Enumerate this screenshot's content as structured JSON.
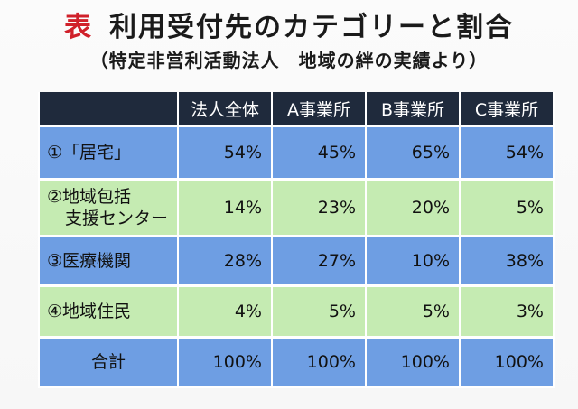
{
  "title": {
    "prefix": "表",
    "text": "利用受付先のカテゴリーと割合",
    "subtitle": "（特定非営利活動法人　地域の絆の実績より）"
  },
  "table": {
    "headers": [
      "",
      "法人全体",
      "A事業所",
      "B事業所",
      "C事業所"
    ],
    "rows": [
      {
        "label": [
          "①「居宅」"
        ],
        "values": [
          "54%",
          "45%",
          "65%",
          "54%"
        ]
      },
      {
        "label": [
          "②地域包括",
          "支援センター"
        ],
        "values": [
          "14%",
          "23%",
          "20%",
          "5%"
        ]
      },
      {
        "label": [
          "③医療機関"
        ],
        "values": [
          "28%",
          "27%",
          "10%",
          "38%"
        ]
      },
      {
        "label": [
          "④地域住民"
        ],
        "values": [
          "4%",
          "5%",
          "5%",
          "3%"
        ]
      },
      {
        "label": [
          "合計"
        ],
        "values": [
          "100%",
          "100%",
          "100%",
          "100%"
        ]
      }
    ]
  },
  "colors": {
    "header_bg": "#1f2a3c",
    "row_blue": "#6e9ee3",
    "row_green": "#c5ebb2",
    "title_accent": "#d0202a"
  }
}
